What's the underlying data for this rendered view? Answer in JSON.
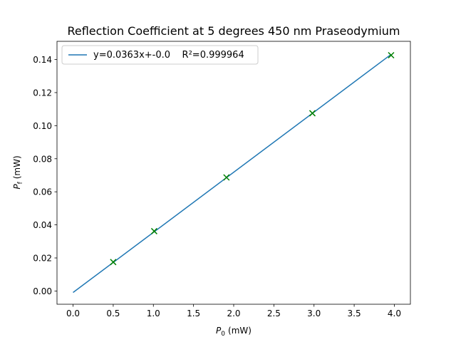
{
  "chart_data": {
    "type": "line",
    "title": "Reflection Coefficient at 5 degrees 450 nm Praseodymium",
    "xlabel": "(mW)",
    "xlabel_symbol": "P",
    "xlabel_sub": "0",
    "ylabel": "(mW)",
    "ylabel_symbol": "P",
    "ylabel_sub": "f",
    "xlim": [
      -0.2,
      4.2
    ],
    "ylim": [
      -0.008,
      0.151
    ],
    "xticks": [
      0.0,
      0.5,
      1.0,
      1.5,
      2.0,
      2.5,
      3.0,
      3.5,
      4.0
    ],
    "xtick_labels": [
      "0.0",
      "0.5",
      "1.0",
      "1.5",
      "2.0",
      "2.5",
      "3.0",
      "3.5",
      "4.0"
    ],
    "yticks": [
      0.0,
      0.02,
      0.04,
      0.06,
      0.08,
      0.1,
      0.12,
      0.14
    ],
    "ytick_labels": [
      "0.00",
      "0.02",
      "0.04",
      "0.06",
      "0.08",
      "0.10",
      "0.12",
      "0.14"
    ],
    "grid": false,
    "legend_position": "top-left",
    "series": [
      {
        "kind": "line",
        "name": "y=0.0363x+-0.0    R²=0.999964",
        "color": "#1f77b4",
        "x": [
          0.0,
          3.96
        ],
        "y": [
          -0.0009,
          0.1431
        ]
      },
      {
        "kind": "scatter",
        "marker": "x",
        "color": "#008000",
        "x": [
          0.5,
          1.01,
          1.91,
          2.98,
          3.96
        ],
        "y": [
          0.0175,
          0.0362,
          0.0687,
          0.1075,
          0.1426
        ]
      }
    ]
  }
}
